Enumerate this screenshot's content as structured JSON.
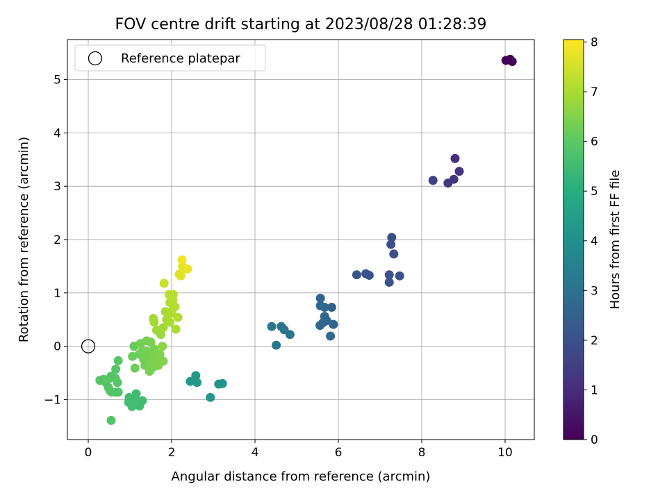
{
  "chart_data": {
    "type": "scatter",
    "title": "FOV centre drift starting at 2023/08/28 01:28:39",
    "xlabel": "Angular distance from reference (arcmin)",
    "ylabel": "Rotation from reference (arcmin)",
    "xlim": [
      -0.5,
      10.7
    ],
    "ylim": [
      -1.75,
      5.75
    ],
    "xticks": [
      0,
      2,
      4,
      6,
      8,
      10
    ],
    "yticks": [
      -1,
      0,
      1,
      2,
      3,
      4,
      5
    ],
    "grid": true,
    "legend": {
      "placement": "top-left",
      "entries": [
        "Reference platepar"
      ]
    },
    "reference_point": {
      "x": 0,
      "y": 0
    },
    "colorbar": {
      "label": "Hours from first FF file",
      "range": [
        0,
        8.05
      ],
      "ticks": [
        0,
        1,
        2,
        3,
        4,
        5,
        6,
        7,
        8
      ],
      "colormap": "viridis"
    },
    "points": [
      {
        "x": 10.02,
        "y": 5.36,
        "h": 0.05
      },
      {
        "x": 10.12,
        "y": 5.38,
        "h": 0.08
      },
      {
        "x": 10.17,
        "y": 5.34,
        "h": 0.1
      },
      {
        "x": 8.8,
        "y": 3.52,
        "h": 1.1
      },
      {
        "x": 8.9,
        "y": 3.28,
        "h": 1.15
      },
      {
        "x": 8.27,
        "y": 3.11,
        "h": 1.5
      },
      {
        "x": 8.63,
        "y": 3.06,
        "h": 1.3
      },
      {
        "x": 8.77,
        "y": 3.13,
        "h": 1.25
      },
      {
        "x": 7.28,
        "y": 2.04,
        "h": 1.9
      },
      {
        "x": 7.26,
        "y": 1.91,
        "h": 1.92
      },
      {
        "x": 7.33,
        "y": 1.73,
        "h": 1.95
      },
      {
        "x": 6.44,
        "y": 1.34,
        "h": 2.1
      },
      {
        "x": 6.66,
        "y": 1.36,
        "h": 2.05
      },
      {
        "x": 6.74,
        "y": 1.33,
        "h": 2.05
      },
      {
        "x": 7.22,
        "y": 1.34,
        "h": 2.0
      },
      {
        "x": 7.22,
        "y": 1.2,
        "h": 2.0
      },
      {
        "x": 7.47,
        "y": 1.32,
        "h": 2.0
      },
      {
        "x": 5.57,
        "y": 0.9,
        "h": 2.6
      },
      {
        "x": 5.57,
        "y": 0.76,
        "h": 2.6
      },
      {
        "x": 5.67,
        "y": 0.73,
        "h": 2.65
      },
      {
        "x": 5.84,
        "y": 0.73,
        "h": 2.55
      },
      {
        "x": 5.67,
        "y": 0.56,
        "h": 2.62
      },
      {
        "x": 5.72,
        "y": 0.48,
        "h": 2.6
      },
      {
        "x": 5.63,
        "y": 0.44,
        "h": 2.65
      },
      {
        "x": 5.56,
        "y": 0.39,
        "h": 2.7
      },
      {
        "x": 5.88,
        "y": 0.41,
        "h": 2.6
      },
      {
        "x": 5.81,
        "y": 0.19,
        "h": 2.7
      },
      {
        "x": 4.4,
        "y": 0.37,
        "h": 3.2
      },
      {
        "x": 4.63,
        "y": 0.37,
        "h": 3.15
      },
      {
        "x": 4.7,
        "y": 0.31,
        "h": 3.15
      },
      {
        "x": 4.84,
        "y": 0.22,
        "h": 3.1
      },
      {
        "x": 4.51,
        "y": 0.02,
        "h": 3.2
      },
      {
        "x": 2.58,
        "y": -0.55,
        "h": 4.3
      },
      {
        "x": 2.45,
        "y": -0.66,
        "h": 4.35
      },
      {
        "x": 2.61,
        "y": -0.68,
        "h": 4.3
      },
      {
        "x": 3.13,
        "y": -0.71,
        "h": 4.1
      },
      {
        "x": 3.22,
        "y": -0.7,
        "h": 4.1
      },
      {
        "x": 2.93,
        "y": -0.96,
        "h": 4.2
      },
      {
        "x": 0.98,
        "y": -0.96,
        "h": 5.5
      },
      {
        "x": 1.12,
        "y": -0.98,
        "h": 5.5
      },
      {
        "x": 1.15,
        "y": -0.89,
        "h": 5.5
      },
      {
        "x": 0.97,
        "y": -1.05,
        "h": 5.55
      },
      {
        "x": 1.05,
        "y": -1.13,
        "h": 5.55
      },
      {
        "x": 1.23,
        "y": -1.12,
        "h": 5.5
      },
      {
        "x": 1.3,
        "y": -1.02,
        "h": 5.5
      },
      {
        "x": 1.1,
        "y": -1.05,
        "h": 5.55
      },
      {
        "x": 0.55,
        "y": -1.39,
        "h": 5.8
      },
      {
        "x": 0.28,
        "y": -0.64,
        "h": 5.9
      },
      {
        "x": 0.36,
        "y": -0.62,
        "h": 5.9
      },
      {
        "x": 0.42,
        "y": -0.68,
        "h": 5.88
      },
      {
        "x": 0.48,
        "y": -0.77,
        "h": 5.85
      },
      {
        "x": 0.52,
        "y": -0.83,
        "h": 5.85
      },
      {
        "x": 0.56,
        "y": -0.86,
        "h": 5.85
      },
      {
        "x": 0.66,
        "y": -0.86,
        "h": 5.82
      },
      {
        "x": 0.72,
        "y": -0.86,
        "h": 5.82
      },
      {
        "x": 0.7,
        "y": -0.68,
        "h": 5.85
      },
      {
        "x": 0.55,
        "y": -0.56,
        "h": 5.9
      },
      {
        "x": 0.48,
        "y": -0.62,
        "h": 5.9
      },
      {
        "x": 0.65,
        "y": -0.6,
        "h": 5.88
      },
      {
        "x": 0.66,
        "y": -0.43,
        "h": 5.9
      },
      {
        "x": 0.72,
        "y": -0.27,
        "h": 5.9
      },
      {
        "x": 1.1,
        "y": 0.0,
        "h": 6.1
      },
      {
        "x": 1.06,
        "y": -0.19,
        "h": 6.2
      },
      {
        "x": 1.12,
        "y": -0.41,
        "h": 6.2
      },
      {
        "x": 1.22,
        "y": -0.15,
        "h": 6.25
      },
      {
        "x": 1.25,
        "y": 0.05,
        "h": 6.3
      },
      {
        "x": 1.3,
        "y": -0.08,
        "h": 6.3
      },
      {
        "x": 1.33,
        "y": -0.25,
        "h": 6.3
      },
      {
        "x": 1.36,
        "y": -0.36,
        "h": 6.3
      },
      {
        "x": 1.4,
        "y": 0.1,
        "h": 6.35
      },
      {
        "x": 1.42,
        "y": -0.1,
        "h": 6.35
      },
      {
        "x": 1.45,
        "y": -0.3,
        "h": 6.35
      },
      {
        "x": 1.47,
        "y": -0.47,
        "h": 6.35
      },
      {
        "x": 1.5,
        "y": 0.08,
        "h": 6.4
      },
      {
        "x": 1.52,
        "y": -0.15,
        "h": 6.4
      },
      {
        "x": 1.55,
        "y": -0.4,
        "h": 6.4
      },
      {
        "x": 1.58,
        "y": -0.05,
        "h": 6.4
      },
      {
        "x": 1.6,
        "y": -0.25,
        "h": 6.45
      },
      {
        "x": 1.64,
        "y": -0.2,
        "h": 6.45
      },
      {
        "x": 1.68,
        "y": -0.36,
        "h": 6.45
      },
      {
        "x": 1.72,
        "y": -0.15,
        "h": 6.5
      },
      {
        "x": 1.8,
        "y": -0.28,
        "h": 6.5
      },
      {
        "x": 1.35,
        "y": -0.19,
        "h": 6.3
      },
      {
        "x": 1.5,
        "y": -0.35,
        "h": 6.4
      },
      {
        "x": 1.62,
        "y": -0.32,
        "h": 6.45
      },
      {
        "x": 1.78,
        "y": 0.0,
        "h": 6.6
      },
      {
        "x": 1.74,
        "y": 0.22,
        "h": 6.8
      },
      {
        "x": 1.64,
        "y": 0.3,
        "h": 6.85
      },
      {
        "x": 1.58,
        "y": 0.45,
        "h": 6.9
      },
      {
        "x": 1.56,
        "y": 0.52,
        "h": 6.9
      },
      {
        "x": 1.8,
        "y": 0.35,
        "h": 6.9
      },
      {
        "x": 1.88,
        "y": 0.5,
        "h": 6.95
      },
      {
        "x": 1.85,
        "y": 0.65,
        "h": 7.0
      },
      {
        "x": 1.96,
        "y": 0.45,
        "h": 7.0
      },
      {
        "x": 2.0,
        "y": 0.62,
        "h": 7.05
      },
      {
        "x": 2.04,
        "y": 0.72,
        "h": 7.1
      },
      {
        "x": 1.96,
        "y": 0.82,
        "h": 7.1
      },
      {
        "x": 2.08,
        "y": 0.74,
        "h": 7.1
      },
      {
        "x": 2.03,
        "y": 0.86,
        "h": 7.15
      },
      {
        "x": 1.94,
        "y": 0.97,
        "h": 7.2
      },
      {
        "x": 2.04,
        "y": 0.97,
        "h": 7.2
      },
      {
        "x": 2.15,
        "y": 0.54,
        "h": 7.1
      },
      {
        "x": 2.1,
        "y": 0.32,
        "h": 7.0
      },
      {
        "x": 1.82,
        "y": 1.18,
        "h": 7.4
      },
      {
        "x": 2.18,
        "y": 1.35,
        "h": 7.6
      },
      {
        "x": 2.22,
        "y": 1.32,
        "h": 7.65
      },
      {
        "x": 2.26,
        "y": 1.5,
        "h": 7.7
      },
      {
        "x": 2.3,
        "y": 1.45,
        "h": 7.75
      },
      {
        "x": 2.38,
        "y": 1.45,
        "h": 7.8
      },
      {
        "x": 2.25,
        "y": 1.62,
        "h": 7.9
      }
    ]
  }
}
